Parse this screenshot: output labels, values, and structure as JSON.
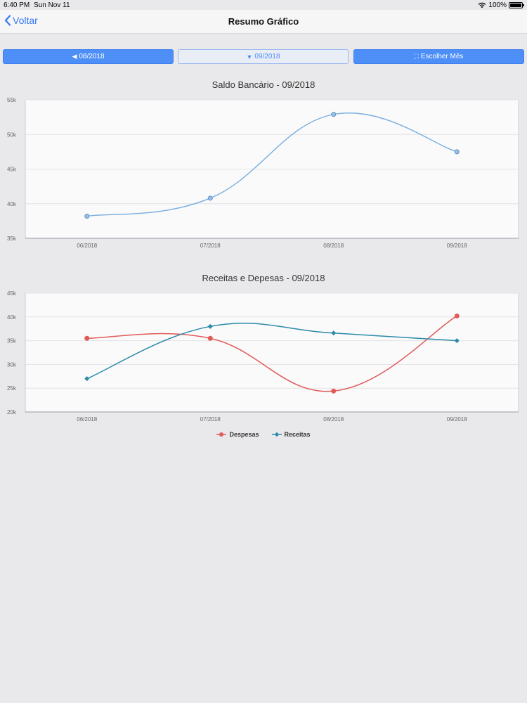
{
  "status": {
    "time": "6:40 PM",
    "date": "Sun Nov 11",
    "battery": "100%"
  },
  "nav": {
    "back_label": "Voltar",
    "title": "Resumo Gráfico"
  },
  "buttons": {
    "prev": "08/2018",
    "current": "09/2018",
    "choose": "Escolher Mês"
  },
  "colors": {
    "accent": "#4d8ef7",
    "saldo": "#7fb2e0",
    "despesas": "#e05a57",
    "receitas": "#2b8aa8"
  },
  "chart_data": [
    {
      "type": "line",
      "title": "Saldo Bancário - 09/2018",
      "categories": [
        "06/2018",
        "07/2018",
        "08/2018",
        "09/2018"
      ],
      "series": [
        {
          "values": [
            38200,
            40800,
            52900,
            47500
          ]
        }
      ],
      "ylim": [
        35000,
        55000
      ],
      "yticks": [
        "35k",
        "40k",
        "45k",
        "50k",
        "55k"
      ],
      "grid": true
    },
    {
      "type": "line",
      "title": "Receitas e Depesas - 09/2018",
      "categories": [
        "06/2018",
        "07/2018",
        "08/2018",
        "09/2018"
      ],
      "series": [
        {
          "name": "Despesas",
          "values": [
            35500,
            35500,
            24400,
            40200
          ]
        },
        {
          "name": "Receitas",
          "values": [
            27000,
            38000,
            36600,
            35000
          ]
        }
      ],
      "ylim": [
        20000,
        45000
      ],
      "yticks": [
        "20k",
        "25k",
        "30k",
        "35k",
        "40k",
        "45k"
      ],
      "grid": true,
      "legend": "bottom-center"
    }
  ]
}
